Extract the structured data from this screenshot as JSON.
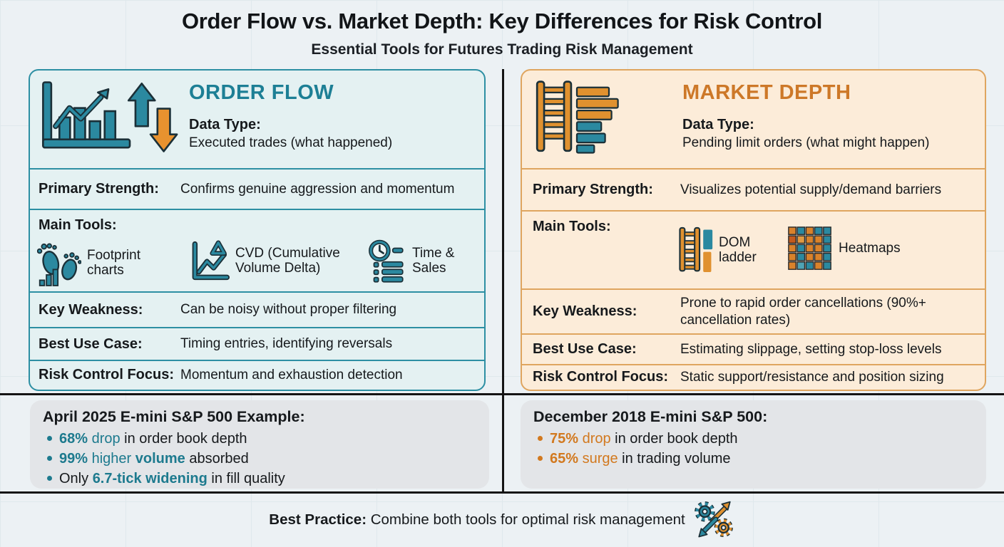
{
  "header": {
    "title": "Order Flow vs. Market Depth: Key Differences for Risk Control",
    "subtitle": "Essential Tools for Futures Trading Risk Management"
  },
  "colors": {
    "teal": "#1d7f95",
    "orange": "#cd7828",
    "dark_text": "#16191c",
    "left_panel_bg": "#e4f1f2",
    "left_panel_border": "#2d8fa3",
    "right_panel_bg": "#fcecd9",
    "right_panel_border": "#dfa55f",
    "example_box_bg": "#e3e5e8",
    "divider": "#141414"
  },
  "left": {
    "title": "ORDER FLOW",
    "data_type_label": "Data Type:",
    "data_type_value": "Executed trades (what happened)",
    "primary_label": "Primary Strength:",
    "primary_value": "Confirms genuine aggression and momentum",
    "tools_label": "Main Tools:",
    "tools": [
      {
        "name": "Footprint charts",
        "icon": "footprint-icon"
      },
      {
        "name": "CVD (Cumulative Volume Delta)",
        "icon": "cvd-line-delta-icon"
      },
      {
        "name": "Time & Sales",
        "icon": "clock-list-icon"
      }
    ],
    "weakness_label": "Key Weakness:",
    "weakness_value": "Can be noisy without proper filtering",
    "bestuse_label": "Best Use Case:",
    "bestuse_value": "Timing entries, identifying reversals",
    "risk_label": "Risk Control Focus:",
    "risk_value": "Momentum and exhaustion detection",
    "header_icon": "trend-chart-with-up-down-arrows-icon"
  },
  "right": {
    "title": "MARKET DEPTH",
    "data_type_label": "Data Type:",
    "data_type_value": "Pending limit orders (what might happen)",
    "primary_label": "Primary Strength:",
    "primary_value": "Visualizes potential supply/demand barriers",
    "tools_label": "Main Tools:",
    "tools": [
      {
        "name": "DOM ladder",
        "icon": "dom-ladder-icon"
      },
      {
        "name": "Heatmaps",
        "icon": "heatmap-grid-icon"
      }
    ],
    "weakness_label": "Key Weakness:",
    "weakness_value": "Prone to rapid order cancellations (90%+ cancellation rates)",
    "bestuse_label": "Best Use Case:",
    "bestuse_value": "Estimating slippage, setting stop-loss levels",
    "risk_label": "Risk Control Focus:",
    "risk_value": "Static support/resistance and position sizing",
    "header_icon": "ladder-depth-bars-icon"
  },
  "examples": {
    "left": {
      "title": "April 2025 E-mini S&P 500 Example:",
      "bullets": [
        [
          {
            "t": "68%",
            "b": true,
            "c": "#1d7a8e"
          },
          {
            "t": " drop",
            "c": "#1d7a8e"
          },
          {
            "t": " in order book depth"
          }
        ],
        [
          {
            "t": "99%",
            "b": true,
            "c": "#1d7a8e"
          },
          {
            "t": " higher ",
            "c": "#1d7a8e"
          },
          {
            "t": "volume",
            "b": true,
            "c": "#1d7a8e"
          },
          {
            "t": " absorbed"
          }
        ],
        [
          {
            "t": "Only "
          },
          {
            "t": "6.7-tick widening",
            "b": true,
            "c": "#1d7a8e"
          },
          {
            "t": " in fill quality"
          }
        ]
      ]
    },
    "right": {
      "title": "December 2018 E-mini S&P 500:",
      "bullets": [
        [
          {
            "t": "75%",
            "b": true,
            "c": "#d2791f"
          },
          {
            "t": " drop",
            "c": "#d2791f"
          },
          {
            "t": " in order book depth"
          }
        ],
        [
          {
            "t": "65%",
            "b": true,
            "c": "#d2791f"
          },
          {
            "t": " surge",
            "c": "#d2791f"
          },
          {
            "t": " in trading volume"
          }
        ]
      ]
    }
  },
  "footer": {
    "label": "Best Practice:",
    "text": " Combine both tools for optimal risk management",
    "icon": "gears-exchange-arrows-icon"
  }
}
